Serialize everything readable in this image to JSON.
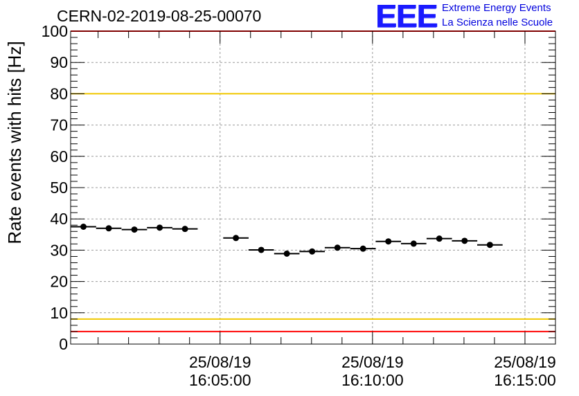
{
  "header": {
    "run_title": "CERN-02-2019-08-25-00070",
    "logo_mark": "EEE",
    "logo_line1": "Extreme Energy Events",
    "logo_line2": "La Scienza nelle Scuole"
  },
  "chart_data": {
    "type": "scatter",
    "title": "CERN-02-2019-08-25-00070",
    "xlabel": "",
    "ylabel": "Rate events with hits [Hz]",
    "ylim": [
      0,
      100
    ],
    "yticks": [
      0,
      10,
      20,
      30,
      40,
      50,
      60,
      70,
      80,
      90,
      100
    ],
    "xlim_minutes": [
      -4.9,
      11.0
    ],
    "xticks": [
      {
        "at_minutes": 0,
        "date": "25/08/19",
        "time": "16:05:00"
      },
      {
        "at_minutes": 5,
        "date": "25/08/19",
        "time": "16:10:00"
      },
      {
        "at_minutes": 10,
        "date": "25/08/19",
        "time": "16:15:00"
      }
    ],
    "bin_width_minutes": 0.833,
    "grid": true,
    "reference_lines": [
      {
        "y": 80,
        "color": "#f0c800"
      },
      {
        "y": 8,
        "color": "#f0c800"
      },
      {
        "y": 4,
        "color": "#ff0000"
      },
      {
        "y": 100,
        "color": "#ff0000"
      }
    ],
    "points": [
      {
        "t_minutes": -4.48,
        "y": 37.5
      },
      {
        "t_minutes": -3.65,
        "y": 37.0
      },
      {
        "t_minutes": -2.81,
        "y": 36.6
      },
      {
        "t_minutes": -1.98,
        "y": 37.2
      },
      {
        "t_minutes": -1.15,
        "y": 36.8
      },
      {
        "t_minutes": 0.52,
        "y": 33.9
      },
      {
        "t_minutes": 1.35,
        "y": 30.1
      },
      {
        "t_minutes": 2.19,
        "y": 28.9
      },
      {
        "t_minutes": 3.02,
        "y": 29.6
      },
      {
        "t_minutes": 3.85,
        "y": 30.8
      },
      {
        "t_minutes": 4.69,
        "y": 30.5
      },
      {
        "t_minutes": 5.52,
        "y": 32.8
      },
      {
        "t_minutes": 6.35,
        "y": 32.1
      },
      {
        "t_minutes": 7.19,
        "y": 33.7
      },
      {
        "t_minutes": 8.02,
        "y": 33.0
      },
      {
        "t_minutes": 8.85,
        "y": 31.7
      }
    ]
  }
}
